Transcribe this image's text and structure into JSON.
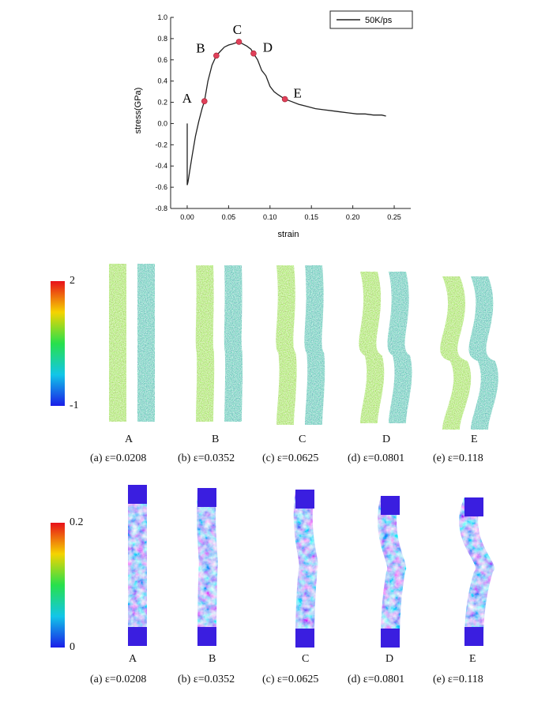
{
  "chart_data": {
    "type": "line",
    "xlabel": "strain",
    "ylabel": "stress(GPa)",
    "xlim": [
      -0.02,
      0.27
    ],
    "ylim": [
      -0.8,
      1.0
    ],
    "xticks": [
      "0.00",
      "0.05",
      "0.10",
      "0.15",
      "0.20",
      "0.25"
    ],
    "yticks": [
      "-0.8",
      "-0.6",
      "-0.4",
      "-0.2",
      "0.0",
      "0.2",
      "0.4",
      "0.6",
      "0.8",
      "1.0"
    ],
    "legend": "top-right",
    "series": [
      {
        "name": "50K/ps",
        "x": [
          0.0,
          0.0,
          0.001,
          0.003,
          0.006,
          0.01,
          0.014,
          0.018,
          0.0208,
          0.025,
          0.03,
          0.0352,
          0.04,
          0.045,
          0.05,
          0.055,
          0.0625,
          0.067,
          0.072,
          0.077,
          0.0801,
          0.085,
          0.09,
          0.095,
          0.1,
          0.105,
          0.11,
          0.118,
          0.125,
          0.135,
          0.145,
          0.155,
          0.165,
          0.175,
          0.185,
          0.195,
          0.205,
          0.215,
          0.225,
          0.235,
          0.24
        ],
        "y": [
          0.0,
          -0.58,
          -0.55,
          -0.45,
          -0.3,
          -0.12,
          0.02,
          0.14,
          0.21,
          0.4,
          0.55,
          0.64,
          0.68,
          0.72,
          0.74,
          0.75,
          0.77,
          0.75,
          0.73,
          0.7,
          0.66,
          0.6,
          0.5,
          0.45,
          0.35,
          0.3,
          0.27,
          0.23,
          0.21,
          0.18,
          0.16,
          0.14,
          0.13,
          0.12,
          0.11,
          0.1,
          0.09,
          0.09,
          0.08,
          0.08,
          0.07
        ]
      }
    ],
    "points": [
      {
        "label": "A",
        "x": 0.0208,
        "y": 0.21
      },
      {
        "label": "B",
        "x": 0.0352,
        "y": 0.64
      },
      {
        "label": "C",
        "x": 0.0625,
        "y": 0.77
      },
      {
        "label": "D",
        "x": 0.0801,
        "y": 0.66
      },
      {
        "label": "E",
        "x": 0.118,
        "y": 0.23
      }
    ],
    "grid": false
  },
  "figure": {
    "panel_labels": [
      "A",
      "B",
      "C",
      "D",
      "E"
    ],
    "captions": [
      "(a) ε=0.0208",
      "(b) ε=0.0352",
      "(c) ε=0.0625",
      "(d) ε=0.0801",
      "(e) ε=0.118"
    ],
    "colorbar1": {
      "max": "2",
      "min": "-1"
    },
    "colorbar2": {
      "max": "0.2",
      "min": "0"
    }
  }
}
